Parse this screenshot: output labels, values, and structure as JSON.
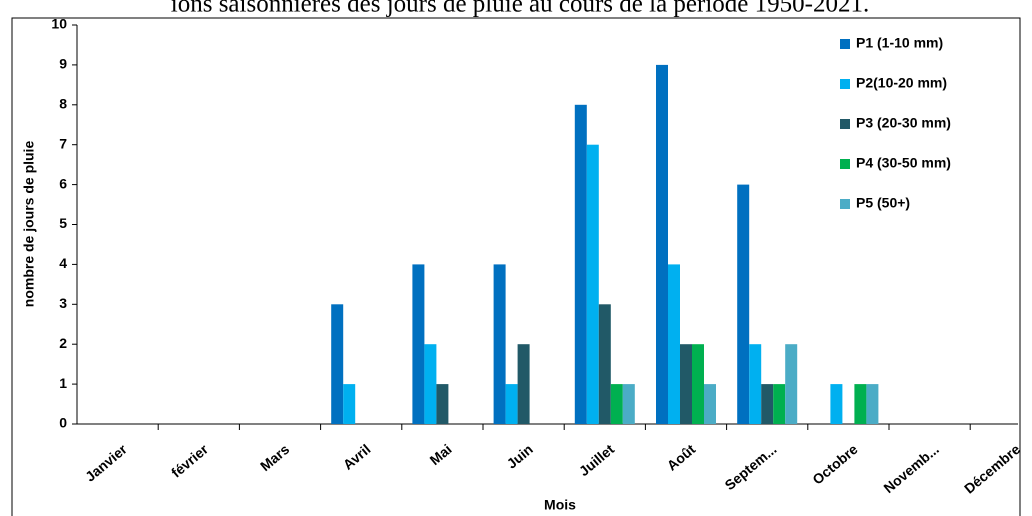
{
  "chart_data": {
    "type": "bar",
    "title": "ions saisonnières des jours de pluie au cours de la période 1950-2021.",
    "x_label": "Mois",
    "y_label": "nombre de jours de pluie",
    "categories": [
      "Janvier",
      "février",
      "Mars",
      "Avril",
      "Mai",
      "Juin",
      "Juillet",
      "Août",
      "Septem...",
      "Octobre",
      "Novemb...",
      "Décembre"
    ],
    "series": [
      {
        "name": "P1 (1-10 mm)",
        "color": "#0070c0",
        "values": [
          0,
          0,
          0,
          3,
          4,
          4,
          8,
          9,
          6,
          0,
          0,
          0
        ]
      },
      {
        "name": "P2(10-20 mm)",
        "color": "#00b0f0",
        "values": [
          0,
          0,
          0,
          1,
          2,
          1,
          7,
          4,
          2,
          1,
          0,
          0
        ]
      },
      {
        "name": "P3 (20-30 mm)",
        "color": "#215967",
        "values": [
          0,
          0,
          0,
          0,
          1,
          2,
          3,
          2,
          1,
          0,
          0,
          0
        ]
      },
      {
        "name": "P4 (30-50 mm)",
        "color": "#00b050",
        "values": [
          0,
          0,
          0,
          0,
          0,
          0,
          1,
          2,
          1,
          1,
          0,
          0
        ]
      },
      {
        "name": "P5 (50+)",
        "color": "#4bacc6",
        "values": [
          0,
          0,
          0,
          0,
          0,
          0,
          1,
          1,
          2,
          1,
          0,
          0
        ]
      }
    ],
    "ylim": [
      0,
      10
    ],
    "yticks": [
      0,
      1,
      2,
      3,
      4,
      5,
      6,
      7,
      8,
      9,
      10
    ],
    "legend": "top-right"
  }
}
